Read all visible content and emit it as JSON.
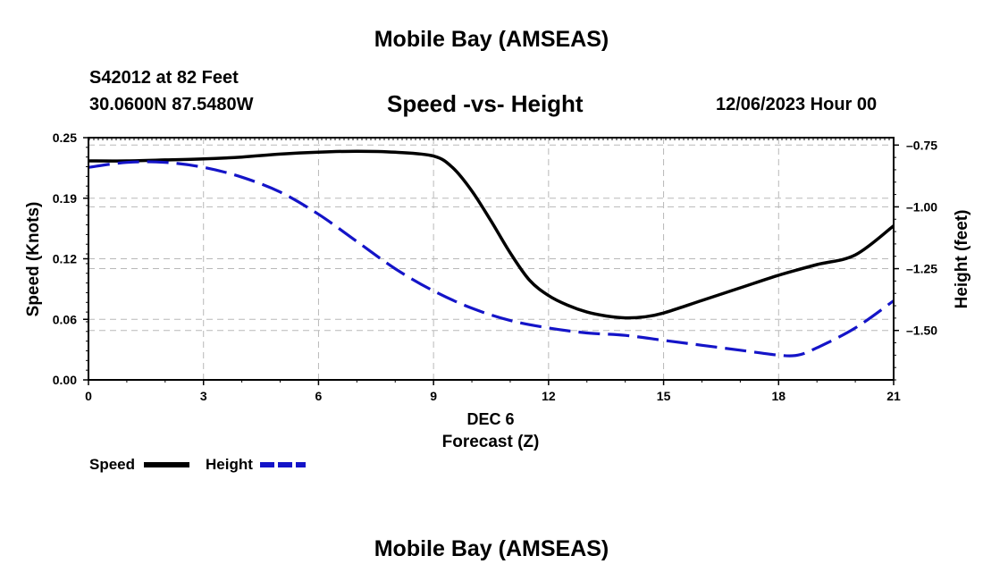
{
  "header": {
    "title": "Mobile Bay (AMSEAS)",
    "station": "S42012 at 82 Feet",
    "coords": "30.0600N  87.5480W",
    "subtitle": "Speed -vs- Height",
    "datetime": "12/06/2023 Hour 00"
  },
  "footer": {
    "title": "Mobile Bay (AMSEAS)"
  },
  "chart_data": {
    "type": "line",
    "title": "Speed -vs- Height",
    "xlabel": "Forecast (Z)",
    "xlabel_date": "DEC 6",
    "ylabel": "Speed (Knots)",
    "y2label": "Height (feet)",
    "xlim": [
      0,
      21
    ],
    "ylim": [
      0,
      0.25
    ],
    "y2lim": [
      -1.7,
      -0.72
    ],
    "x_ticks": [
      "0",
      "3",
      "6",
      "9",
      "12",
      "15",
      "18",
      "21"
    ],
    "x_tick_values": [
      0,
      3,
      6,
      9,
      12,
      15,
      18,
      21
    ],
    "y_ticks": [
      "0.00",
      "0.06",
      "0.12",
      "0.19",
      "0.25"
    ],
    "y_tick_values": [
      0,
      0.0625,
      0.125,
      0.1875,
      0.25
    ],
    "y2_ticks": [
      "-0.75",
      "-1.00",
      "-1.25",
      "-1.50"
    ],
    "y2_tick_values": [
      -0.75,
      -1.0,
      -1.25,
      -1.5
    ],
    "grid": true,
    "legend_position": "bottom-left",
    "series": [
      {
        "name": "Speed",
        "axis": "left",
        "color": "#000000",
        "style": "solid",
        "x": [
          0,
          1,
          2,
          3,
          4,
          5,
          6,
          7,
          8,
          9,
          9.5,
          10,
          10.5,
          11,
          11.5,
          12,
          12.5,
          13,
          13.5,
          14,
          14.5,
          15,
          16,
          17,
          18,
          19,
          20,
          21
        ],
        "values": [
          0.226,
          0.226,
          0.227,
          0.228,
          0.23,
          0.233,
          0.235,
          0.236,
          0.235,
          0.231,
          0.219,
          0.195,
          0.164,
          0.131,
          0.103,
          0.087,
          0.077,
          0.07,
          0.066,
          0.064,
          0.065,
          0.069,
          0.082,
          0.095,
          0.108,
          0.119,
          0.129,
          0.159
        ]
      },
      {
        "name": "Height",
        "axis": "right",
        "color": "#1414c8",
        "style": "dashed",
        "x": [
          0,
          1,
          2,
          3,
          4,
          5,
          6,
          7,
          8,
          9,
          10,
          11,
          12,
          13,
          14,
          15,
          16,
          17,
          18,
          18.5,
          19,
          20,
          21
        ],
        "values": [
          -0.84,
          -0.82,
          -0.82,
          -0.84,
          -0.88,
          -0.94,
          -1.03,
          -1.14,
          -1.25,
          -1.34,
          -1.41,
          -1.46,
          -1.49,
          -1.51,
          -1.52,
          -1.54,
          -1.56,
          -1.58,
          -1.6,
          -1.6,
          -1.57,
          -1.49,
          -1.38
        ]
      }
    ]
  }
}
